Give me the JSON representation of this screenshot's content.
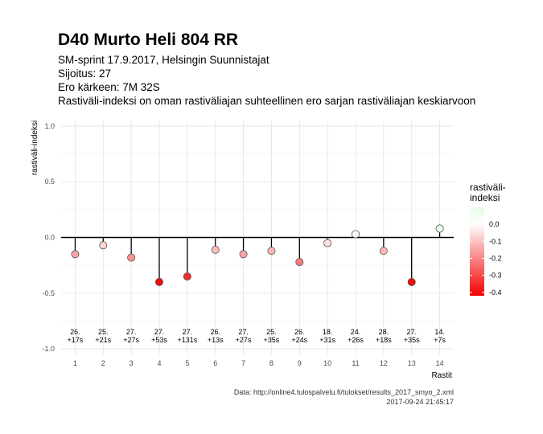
{
  "chart_data": {
    "type": "scatter",
    "title": "D40 Murto Heli 804 RR",
    "subtitle_lines": [
      "SM-sprint 17.9.2017, Helsingin Suunnistajat",
      "Sijoitus: 27",
      "Ero kärkeen: 7M 32S",
      "Rastiväli-indeksi on oman rastiväliajan suhteellinen ero sarjan rastiväliajan keskiarvoon"
    ],
    "xlabel": "Rastit",
    "ylabel": "rastiväli-indeksi",
    "xlim": [
      0.5,
      14.5
    ],
    "ylim": [
      -1.05,
      1.05
    ],
    "x_ticks": [
      1,
      2,
      3,
      4,
      5,
      6,
      7,
      8,
      9,
      10,
      11,
      12,
      13,
      14
    ],
    "x_tick_labels": [
      "1",
      "2",
      "3",
      "4",
      "5",
      "6",
      "7",
      "8",
      "9",
      "10",
      "11",
      "12",
      "13",
      "14"
    ],
    "y_ticks": [
      -1.0,
      -0.5,
      0.0,
      0.5,
      1.0
    ],
    "y_tick_labels": [
      "-1.0",
      "-0.5",
      "0.0",
      "0.5",
      "1.0"
    ],
    "grid": true,
    "x": [
      1,
      2,
      3,
      4,
      5,
      6,
      7,
      8,
      9,
      10,
      11,
      12,
      13,
      14
    ],
    "values": [
      -0.15,
      -0.07,
      -0.18,
      -0.4,
      -0.35,
      -0.11,
      -0.15,
      -0.12,
      -0.22,
      -0.05,
      0.03,
      -0.12,
      -0.4,
      0.08
    ],
    "annotations": [
      [
        "26.",
        "+17s"
      ],
      [
        "25.",
        "+21s"
      ],
      [
        "27.",
        "+27s"
      ],
      [
        "27.",
        "+53s"
      ],
      [
        "27.",
        "+131s"
      ],
      [
        "26.",
        "+13s"
      ],
      [
        "27.",
        "+27s"
      ],
      [
        "25.",
        "+35s"
      ],
      [
        "26.",
        "+24s"
      ],
      [
        "18.",
        "+31s"
      ],
      [
        "24.",
        "+26s"
      ],
      [
        "28.",
        "+18s"
      ],
      [
        "27.",
        "+35s"
      ],
      [
        "14.",
        "+7s"
      ]
    ],
    "annotation_y": -0.9,
    "legend": {
      "title_lines": [
        "rastiväli-",
        "indeksi"
      ],
      "placement": "right",
      "ticks": [
        0.0,
        -0.1,
        -0.2,
        -0.3,
        -0.4
      ],
      "tick_labels": [
        "0.0",
        "-0.1",
        "-0.2",
        "-0.3",
        "-0.4"
      ],
      "range": [
        -0.42,
        0.1
      ]
    },
    "colors": {
      "high": "#e6fce6",
      "mid": "#ffffff",
      "low": "#f20000",
      "stem": "#000000",
      "grid": "#e3e3e3",
      "zero_line": "#000000"
    }
  },
  "caption": {
    "source": "Data: http://online4.tulospalvelu.fi/tulokset/results_2017_smyo_2.xml",
    "timestamp": "2017-09-24 21:45:17"
  }
}
